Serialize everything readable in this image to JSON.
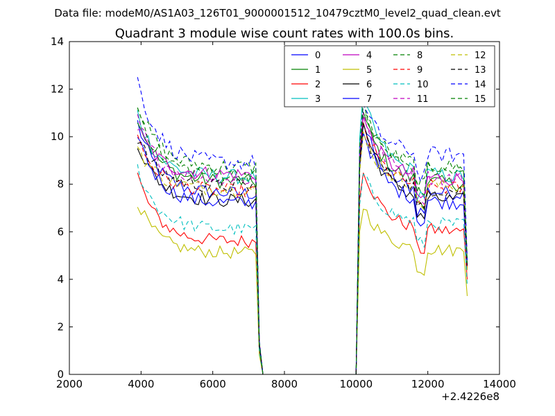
{
  "figure": {
    "suptitle": "Data file: modeM0/AS1A03_126T01_9000001512_10479cztM0_level2_quad_clean.evt"
  },
  "chart_data": {
    "type": "line",
    "title": "Quadrant 3 module wise count rates with 100.0s bins.",
    "xlabel": "",
    "ylabel": "",
    "x_offset_label": "+2.4226e8",
    "xlim": [
      2000,
      14000
    ],
    "ylim": [
      0,
      14
    ],
    "x_ticks": [
      2000,
      4000,
      6000,
      8000,
      10000,
      12000,
      14000
    ],
    "y_ticks": [
      0,
      2,
      4,
      6,
      8,
      10,
      12,
      14
    ],
    "x_tick_labels": [
      "2000",
      "4000",
      "6000",
      "8000",
      "10000",
      "12000",
      "14000"
    ],
    "y_tick_labels": [
      "0",
      "2",
      "4",
      "6",
      "8",
      "10",
      "12",
      "14"
    ],
    "grid": false,
    "legend_position": "top-right",
    "x_start": 3900,
    "x_step": 100,
    "series": [
      {
        "name": "0",
        "color": "#0000ff",
        "dashed": false,
        "start": 10.6,
        "plateau": 7.6,
        "gap_peak": 10.6,
        "end": 7.6,
        "drop_end": 4.5
      },
      {
        "name": "1",
        "color": "#008000",
        "dashed": false,
        "start": 10.9,
        "plateau": 8.1,
        "gap_peak": 11.0,
        "end": 8.0,
        "drop_end": 4.6
      },
      {
        "name": "2",
        "color": "#ff0000",
        "dashed": false,
        "start": 8.4,
        "plateau": 5.6,
        "gap_peak": 8.7,
        "end": 6.0,
        "drop_end": 4.0
      },
      {
        "name": "3",
        "color": "#00bfbf",
        "dashed": false,
        "start": 11.0,
        "plateau": 8.3,
        "gap_peak": 11.7,
        "end": 8.3,
        "drop_end": 4.7
      },
      {
        "name": "4",
        "color": "#bf00bf",
        "dashed": false,
        "start": 10.4,
        "plateau": 8.4,
        "gap_peak": 10.8,
        "end": 8.2,
        "drop_end": 4.6
      },
      {
        "name": "5",
        "color": "#bfbf00",
        "dashed": false,
        "start": 7.3,
        "plateau": 5.1,
        "gap_peak": 7.1,
        "end": 5.2,
        "drop_end": 3.3
      },
      {
        "name": "6",
        "color": "#000000",
        "dashed": false,
        "start": 9.8,
        "plateau": 7.3,
        "gap_peak": 10.6,
        "end": 7.3,
        "drop_end": 4.4
      },
      {
        "name": "7",
        "color": "#0000ff",
        "dashed": false,
        "start": 10.2,
        "plateau": 7.2,
        "gap_peak": 10.3,
        "end": 7.2,
        "drop_end": 4.4
      },
      {
        "name": "8",
        "color": "#008000",
        "dashed": true,
        "start": 11.5,
        "plateau": 8.7,
        "gap_peak": 11.2,
        "end": 8.7,
        "drop_end": 4.8
      },
      {
        "name": "9",
        "color": "#ff0000",
        "dashed": true,
        "start": 10.0,
        "plateau": 7.7,
        "gap_peak": 10.5,
        "end": 7.8,
        "drop_end": 4.5
      },
      {
        "name": "10",
        "color": "#00bfbf",
        "dashed": true,
        "start": 8.7,
        "plateau": 6.1,
        "gap_peak": 8.4,
        "end": 6.3,
        "drop_end": 3.7
      },
      {
        "name": "11",
        "color": "#bf00bf",
        "dashed": true,
        "start": 10.8,
        "plateau": 8.2,
        "gap_peak": 11.0,
        "end": 8.2,
        "drop_end": 4.6
      },
      {
        "name": "12",
        "color": "#bfbf00",
        "dashed": true,
        "start": 9.6,
        "plateau": 7.8,
        "gap_peak": 10.0,
        "end": 7.9,
        "drop_end": 4.4
      },
      {
        "name": "13",
        "color": "#000000",
        "dashed": true,
        "start": 10.0,
        "plateau": 7.9,
        "gap_peak": 10.4,
        "end": 7.7,
        "drop_end": 4.5
      },
      {
        "name": "14",
        "color": "#0000ff",
        "dashed": true,
        "start": 12.4,
        "plateau": 8.9,
        "gap_peak": 11.3,
        "end": 9.2,
        "drop_end": 4.8
      },
      {
        "name": "15",
        "color": "#008000",
        "dashed": true,
        "start": 11.3,
        "plateau": 8.4,
        "gap_peak": 11.3,
        "end": 8.5,
        "drop_end": 4.7
      }
    ]
  }
}
